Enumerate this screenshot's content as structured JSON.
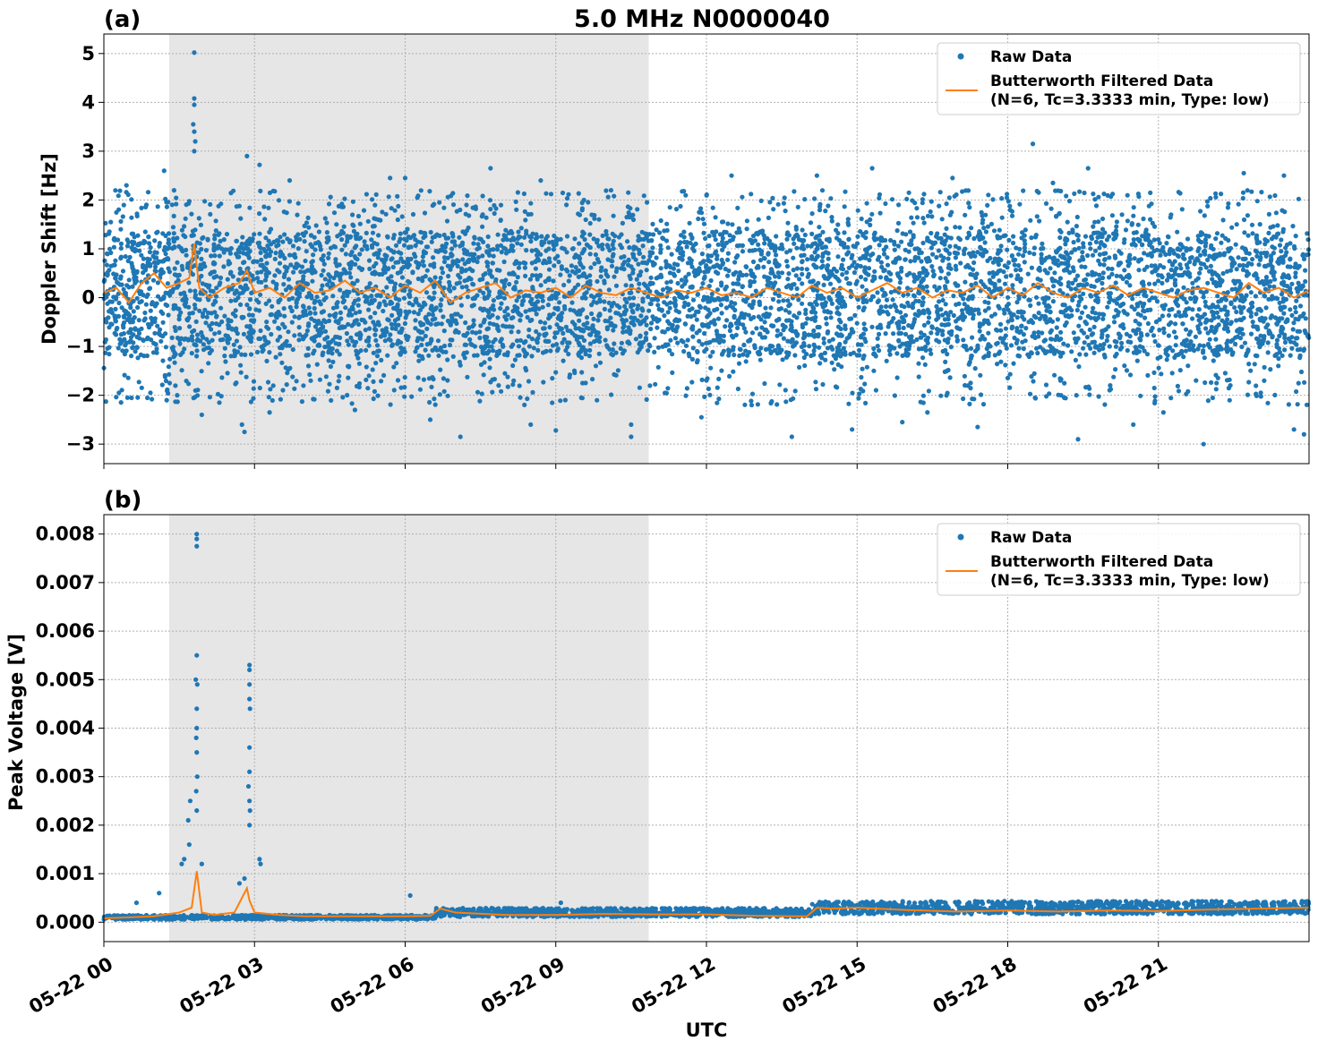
{
  "chart_data": [
    {
      "type": "scatter",
      "panel_label": "(a)",
      "title": "5.0 MHz N0000040",
      "ylabel": "Doppler Shift [Hz]",
      "xlabel": "",
      "x_range_hours": [
        0,
        24
      ],
      "ylim": [
        -3.4,
        5.4
      ],
      "yticks": [
        -3,
        -2,
        -1,
        0,
        1,
        2,
        3,
        4,
        5
      ],
      "ytick_labels": [
        "−3",
        "−2",
        "−1",
        "0",
        "1",
        "2",
        "3",
        "4",
        "5"
      ],
      "grid": true,
      "legend_position": "top-right",
      "shaded_span_hours": [
        1.3,
        10.85
      ],
      "series": [
        {
          "name": "Raw Data",
          "kind": "points",
          "color": "#1f77b4",
          "band_lower": -1.2,
          "band_upper": 1.35,
          "outliers_high": [
            [
              1.8,
              5.02
            ],
            [
              1.8,
              4.08
            ],
            [
              1.8,
              3.95
            ],
            [
              1.78,
              3.55
            ],
            [
              1.8,
              3.4
            ],
            [
              1.82,
              3.2
            ],
            [
              1.8,
              3.0
            ],
            [
              2.85,
              2.9
            ],
            [
              3.1,
              2.72
            ],
            [
              18.5,
              3.15
            ],
            [
              7.7,
              2.65
            ],
            [
              6.0,
              2.45
            ],
            [
              5.7,
              2.45
            ],
            [
              0.45,
              2.3
            ],
            [
              3.7,
              2.4
            ],
            [
              8.7,
              2.4
            ],
            [
              10.1,
              2.2
            ],
            [
              14.2,
              2.5
            ],
            [
              15.3,
              2.65
            ],
            [
              16.9,
              2.45
            ],
            [
              19.6,
              2.65
            ],
            [
              22.7,
              2.55
            ],
            [
              23.5,
              2.5
            ],
            [
              1.2,
              2.6
            ],
            [
              12.5,
              2.5
            ],
            [
              18.9,
              2.35
            ]
          ],
          "outliers_low": [
            [
              2.8,
              -2.75
            ],
            [
              2.75,
              -2.6
            ],
            [
              1.95,
              -2.4
            ],
            [
              2.3,
              -2.15
            ],
            [
              7.1,
              -2.85
            ],
            [
              9.0,
              -2.72
            ],
            [
              8.5,
              -2.6
            ],
            [
              10.5,
              -2.85
            ],
            [
              10.5,
              -2.6
            ],
            [
              6.5,
              -2.5
            ],
            [
              13.7,
              -2.85
            ],
            [
              14.9,
              -2.7
            ],
            [
              19.4,
              -2.9
            ],
            [
              21.9,
              -3.0
            ],
            [
              23.9,
              -2.8
            ],
            [
              23.7,
              -2.7
            ],
            [
              20.5,
              -2.6
            ],
            [
              17.4,
              -2.65
            ],
            [
              11.9,
              -2.45
            ],
            [
              15.9,
              -2.55
            ],
            [
              21.1,
              -2.35
            ],
            [
              16.4,
              -2.35
            ],
            [
              5.0,
              -2.3
            ],
            [
              3.3,
              -2.35
            ],
            [
              0.3,
              -1.95
            ],
            [
              12.9,
              -2.2
            ]
          ]
        },
        {
          "name": "Butterworth Filtered Data",
          "name_line2": "(N=6, Tc=3.3333 min, Type: low)",
          "kind": "line",
          "color": "#ff7f0e",
          "x": [
            0,
            0.25,
            0.5,
            0.75,
            1.0,
            1.25,
            1.5,
            1.7,
            1.8,
            1.9,
            2.1,
            2.4,
            2.7,
            2.85,
            3.0,
            3.3,
            3.6,
            3.9,
            4.2,
            4.5,
            4.8,
            5.1,
            5.4,
            5.7,
            6.0,
            6.3,
            6.6,
            6.9,
            7.2,
            7.5,
            7.8,
            8.1,
            8.4,
            8.7,
            9.0,
            9.3,
            9.6,
            9.9,
            10.2,
            10.5,
            10.8,
            11.1,
            11.4,
            11.7,
            12.0,
            12.3,
            12.6,
            12.9,
            13.2,
            13.5,
            13.8,
            14.1,
            14.4,
            14.7,
            15.0,
            15.3,
            15.6,
            15.9,
            16.2,
            16.5,
            16.8,
            17.1,
            17.4,
            17.7,
            18.0,
            18.3,
            18.6,
            18.9,
            19.2,
            19.5,
            19.8,
            20.1,
            20.4,
            20.7,
            21.0,
            21.3,
            21.6,
            21.9,
            22.2,
            22.5,
            22.8,
            23.1,
            23.4,
            23.7,
            24.0
          ],
          "y": [
            0.1,
            0.2,
            -0.1,
            0.3,
            0.5,
            0.2,
            0.3,
            0.4,
            1.1,
            0.2,
            0.0,
            0.2,
            0.3,
            0.55,
            0.1,
            0.2,
            0.0,
            0.3,
            0.1,
            0.15,
            0.35,
            0.1,
            0.2,
            0.0,
            0.25,
            0.1,
            0.35,
            -0.1,
            0.1,
            0.2,
            0.3,
            0.0,
            0.15,
            0.1,
            0.2,
            0.0,
            0.25,
            0.1,
            0.05,
            0.2,
            0.1,
            0.0,
            0.15,
            0.1,
            0.2,
            0.05,
            0.1,
            0.0,
            0.2,
            0.1,
            0.0,
            0.25,
            0.1,
            0.2,
            0.0,
            0.15,
            0.3,
            0.1,
            0.2,
            0.0,
            0.15,
            0.1,
            0.25,
            0.0,
            0.2,
            0.05,
            0.3,
            0.1,
            0.0,
            0.2,
            0.1,
            0.25,
            0.05,
            0.2,
            0.1,
            0.0,
            0.15,
            0.2,
            0.1,
            0.0,
            0.3,
            0.1,
            0.2,
            0.0,
            0.15
          ]
        }
      ]
    },
    {
      "type": "scatter",
      "panel_label": "(b)",
      "title": "",
      "ylabel": "Peak Voltage [V]",
      "xlabel": "UTC",
      "x_range_hours": [
        0,
        24
      ],
      "xticks_hours": [
        0,
        3,
        6,
        9,
        12,
        15,
        18,
        21
      ],
      "xtick_labels": [
        "05-22 00",
        "05-22 03",
        "05-22 06",
        "05-22 09",
        "05-22 12",
        "05-22 15",
        "05-22 18",
        "05-22 21"
      ],
      "ylim": [
        -0.0004,
        0.0084
      ],
      "yticks": [
        0.0,
        0.001,
        0.002,
        0.003,
        0.004,
        0.005,
        0.006,
        0.007,
        0.008
      ],
      "ytick_labels": [
        "0.000",
        "0.001",
        "0.002",
        "0.003",
        "0.004",
        "0.005",
        "0.006",
        "0.007",
        "0.008"
      ],
      "grid": true,
      "legend_position": "top-right",
      "shaded_span_hours": [
        1.3,
        10.85
      ],
      "series": [
        {
          "name": "Raw Data",
          "kind": "points",
          "color": "#1f77b4",
          "base_level": [
            [
              0,
              0.0001
            ],
            [
              6.5,
              0.0001
            ],
            [
              6.6,
              0.0002
            ],
            [
              14.0,
              0.0002
            ],
            [
              14.1,
              0.0003
            ],
            [
              24.0,
              0.0003
            ]
          ],
          "spikes": [
            [
              1.85,
              0.008
            ],
            [
              1.85,
              0.0079
            ],
            [
              1.85,
              0.00775
            ],
            [
              1.85,
              0.0055
            ],
            [
              1.83,
              0.005
            ],
            [
              1.86,
              0.0049
            ],
            [
              1.85,
              0.0044
            ],
            [
              1.85,
              0.004
            ],
            [
              1.84,
              0.0038
            ],
            [
              1.85,
              0.0035
            ],
            [
              1.86,
              0.003
            ],
            [
              1.84,
              0.0027
            ],
            [
              1.85,
              0.0023
            ],
            [
              1.72,
              0.0025
            ],
            [
              1.68,
              0.0021
            ],
            [
              1.7,
              0.0016
            ],
            [
              1.6,
              0.0013
            ],
            [
              1.55,
              0.0012
            ],
            [
              1.95,
              0.0012
            ],
            [
              2.9,
              0.0053
            ],
            [
              2.9,
              0.0052
            ],
            [
              2.9,
              0.0049
            ],
            [
              2.9,
              0.0046
            ],
            [
              2.91,
              0.0044
            ],
            [
              2.9,
              0.0036
            ],
            [
              2.9,
              0.0031
            ],
            [
              2.88,
              0.0028
            ],
            [
              2.9,
              0.0025
            ],
            [
              2.91,
              0.0023
            ],
            [
              2.9,
              0.002
            ],
            [
              3.1,
              0.0013
            ],
            [
              3.12,
              0.0012
            ],
            [
              2.8,
              0.0009
            ],
            [
              2.7,
              0.0008
            ],
            [
              0.65,
              0.0004
            ],
            [
              1.1,
              0.0006
            ],
            [
              6.1,
              0.00055
            ],
            [
              9.1,
              0.0004
            ]
          ]
        },
        {
          "name": "Butterworth Filtered Data",
          "name_line2": "(N=6, Tc=3.3333 min, Type: low)",
          "kind": "line",
          "color": "#ff7f0e",
          "x": [
            0,
            0.5,
            1.0,
            1.5,
            1.75,
            1.85,
            1.95,
            2.2,
            2.6,
            2.85,
            2.9,
            3.0,
            3.5,
            4.0,
            5.0,
            6.0,
            6.5,
            6.7,
            7.0,
            8.0,
            9.0,
            10.0,
            11.0,
            12.0,
            13.0,
            14.0,
            14.2,
            14.5,
            15.0,
            16.0,
            17.0,
            18.0,
            19.0,
            20.0,
            21.0,
            22.0,
            23.0,
            24.0
          ],
          "y": [
            8e-05,
            0.0001,
            0.00012,
            0.0002,
            0.0003,
            0.00105,
            0.0002,
            0.00015,
            0.0002,
            0.0007,
            0.00045,
            0.0002,
            0.00015,
            0.00012,
            0.00012,
            0.00012,
            0.00013,
            0.00028,
            0.0002,
            0.00015,
            0.00015,
            0.00017,
            0.00016,
            0.00016,
            0.00013,
            0.00012,
            0.0003,
            0.00028,
            0.0003,
            0.00025,
            0.00022,
            0.00024,
            0.00022,
            0.00024,
            0.00023,
            0.00026,
            0.00028,
            0.0003
          ]
        }
      ]
    }
  ]
}
